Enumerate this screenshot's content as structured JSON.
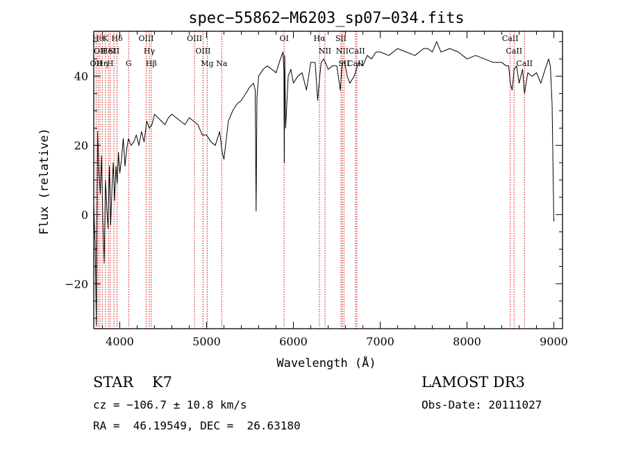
{
  "chart_data": {
    "type": "line",
    "title": "spec−55862−M6203_sp07−034.fits",
    "xlabel": "Wavelength (Å)",
    "ylabel": "Flux (relative)",
    "xlim": [
      3700,
      9100
    ],
    "ylim": [
      -33,
      53
    ],
    "xticks": [
      4000,
      5000,
      6000,
      7000,
      8000,
      9000
    ],
    "yticks": [
      -20,
      0,
      20,
      40
    ],
    "ytick_labels": [
      "−20",
      "0",
      "20",
      "40"
    ],
    "line_color": "#000000",
    "marker_color": "#cc0000",
    "series": [
      {
        "name": "flux",
        "x": [
          3700,
          3715,
          3730,
          3745,
          3760,
          3775,
          3790,
          3805,
          3820,
          3835,
          3850,
          3865,
          3880,
          3895,
          3910,
          3925,
          3940,
          3955,
          3970,
          3985,
          4000,
          4020,
          4040,
          4060,
          4080,
          4100,
          4130,
          4160,
          4190,
          4220,
          4250,
          4280,
          4310,
          4340,
          4370,
          4400,
          4440,
          4480,
          4520,
          4560,
          4600,
          4650,
          4700,
          4750,
          4800,
          4850,
          4900,
          4950,
          5000,
          5050,
          5100,
          5150,
          5180,
          5200,
          5250,
          5300,
          5350,
          5400,
          5450,
          5500,
          5540,
          5560,
          5570,
          5580,
          5600,
          5650,
          5700,
          5750,
          5800,
          5850,
          5880,
          5890,
          5895,
          5900,
          5910,
          5940,
          5970,
          6000,
          6050,
          6100,
          6150,
          6200,
          6250,
          6280,
          6300,
          6320,
          6350,
          6400,
          6450,
          6500,
          6540,
          6563,
          6590,
          6620,
          6650,
          6700,
          6750,
          6800,
          6850,
          6900,
          6950,
          7000,
          7100,
          7200,
          7300,
          7400,
          7500,
          7550,
          7600,
          7650,
          7700,
          7800,
          7900,
          8000,
          8100,
          8200,
          8300,
          8400,
          8450,
          8480,
          8498,
          8520,
          8542,
          8570,
          8600,
          8640,
          8662,
          8700,
          8750,
          8800,
          8850,
          8900,
          8940,
          8960,
          8980,
          9000
        ],
        "y": [
          3,
          -8,
          -32,
          24,
          12,
          6,
          17,
          -2,
          -14,
          10,
          2,
          -4,
          14,
          -3,
          8,
          15,
          4,
          14,
          9,
          18,
          12,
          16,
          22,
          14,
          19,
          22,
          20,
          21,
          23,
          20,
          24,
          21,
          27,
          25,
          26,
          29,
          28,
          27,
          26,
          28,
          29,
          28,
          27,
          26,
          28,
          27,
          26,
          23,
          23,
          21,
          20,
          24,
          18,
          16,
          27,
          30,
          32,
          33,
          35,
          37,
          38,
          36,
          1,
          34,
          40,
          42,
          43,
          42,
          41,
          45,
          47,
          42,
          15,
          46,
          25,
          40,
          42,
          38,
          40,
          41,
          36,
          44,
          44,
          33,
          39,
          44,
          45,
          42,
          43,
          43,
          36,
          44,
          44,
          40,
          38,
          40,
          44,
          43,
          46,
          45,
          47,
          47,
          46,
          48,
          47,
          46,
          48,
          48,
          47,
          50,
          47,
          48,
          47,
          45,
          46,
          45,
          44,
          44,
          43,
          43,
          38,
          36,
          42,
          43,
          38,
          42,
          35,
          41,
          40,
          41,
          38,
          42,
          45,
          43,
          32,
          -2
        ]
      }
    ],
    "line_markers": [
      {
        "wavelength": 3727,
        "row": 2,
        "label": "OII"
      },
      {
        "wavelength": 3750,
        "row": 0,
        "label": "Hθ"
      },
      {
        "wavelength": 3771,
        "row": 1,
        "label": "OII"
      },
      {
        "wavelength": 3798,
        "row": 2,
        "label": "Hη"
      },
      {
        "wavelength": 3835,
        "row": 0,
        "label": "K"
      },
      {
        "wavelength": 3869,
        "row": 1,
        "label": "HeI"
      },
      {
        "wavelength": 3889,
        "row": 2,
        "label": "H"
      },
      {
        "wavelength": 3933,
        "row": 1,
        "label": "SII"
      },
      {
        "wavelength": 3968,
        "row": 0,
        "label": "Hδ"
      },
      {
        "wavelength": 4102,
        "row": 2,
        "label": "G"
      },
      {
        "wavelength": 4304,
        "row": 0,
        "label": "OIII"
      },
      {
        "wavelength": 4340,
        "row": 1,
        "label": "Hγ"
      },
      {
        "wavelength": 4363,
        "row": 2,
        "label": "Hβ"
      },
      {
        "wavelength": 4861,
        "row": 0,
        "label": "OIII"
      },
      {
        "wavelength": 4959,
        "row": 1,
        "label": "OIII"
      },
      {
        "wavelength": 5007,
        "row": 2,
        "label": "Mg"
      },
      {
        "wavelength": 5175,
        "row": 2,
        "label": "Na"
      },
      {
        "wavelength": 5893,
        "row": 0,
        "label": "OI"
      },
      {
        "wavelength": 6300,
        "row": 0,
        "label": "Hα"
      },
      {
        "wavelength": 6364,
        "row": 1,
        "label": "NII"
      },
      {
        "wavelength": 6548,
        "row": 0,
        "label": "SII"
      },
      {
        "wavelength": 6563,
        "row": 1,
        "label": "NII"
      },
      {
        "wavelength": 6583,
        "row": 2,
        "label": "SII"
      },
      {
        "wavelength": 6716,
        "row": 2,
        "label": "CaII"
      },
      {
        "wavelength": 6731,
        "row": 1,
        "label": "CaII"
      },
      {
        "wavelength": 8498,
        "row": 0,
        "label": "CaII"
      },
      {
        "wavelength": 8542,
        "row": 1,
        "label": "CaII"
      },
      {
        "wavelength": 8662,
        "row": 2,
        "label": "CaII"
      }
    ]
  },
  "info": {
    "class_line": "STAR    K7",
    "survey": "LAMOST DR3",
    "redshift": "cz = −106.7 ± 10.8 km/s",
    "obs_date": "Obs-Date: 20111027",
    "coords": "RA =  46.19549, DEC =  26.63180"
  }
}
